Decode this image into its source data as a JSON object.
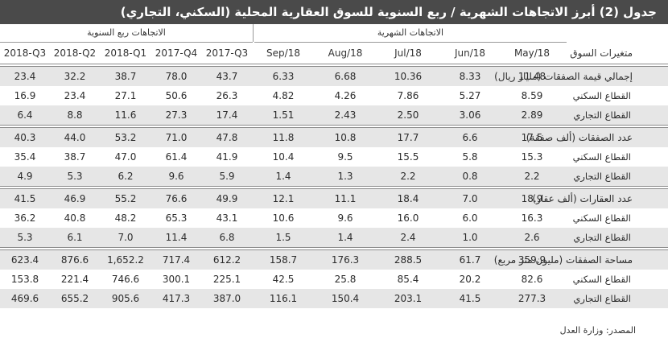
{
  "title": "جدول (2) أبرز الاتجاهات الشهرية / ربع السنوية للسوق العقارية المحلية (السكني، التجاري)",
  "sections": {
    "quarterly": "الاتجاهات ربع السنوية",
    "monthly": "الاتجاهات الشهرية"
  },
  "columns": [
    "2018-Q3",
    "2018-Q2",
    "2018-Q1",
    "2017-Q4",
    "2017-Q3",
    "Sep/18",
    "Aug/18",
    "Jul/18",
    "Jun/18",
    "May/18"
  ],
  "row_header_label": "متغيرات السوق",
  "groups": [
    {
      "rows": [
        {
          "label": "إجمالي قيمة الصفقات (مليار ريال)",
          "values": [
            "23.4",
            "32.2",
            "38.7",
            "78.0",
            "43.7",
            "6.33",
            "6.68",
            "10.36",
            "8.33",
            "11.48"
          ]
        },
        {
          "label": "القطاع السكني",
          "values": [
            "16.9",
            "23.4",
            "27.1",
            "50.6",
            "26.3",
            "4.82",
            "4.26",
            "7.86",
            "5.27",
            "8.59"
          ]
        },
        {
          "label": "القطاع التجاري",
          "values": [
            "6.4",
            "8.8",
            "11.6",
            "27.3",
            "17.4",
            "1.51",
            "2.43",
            "2.50",
            "3.06",
            "2.89"
          ]
        }
      ]
    },
    {
      "rows": [
        {
          "label": "عدد الصفقات (ألف صفقة)",
          "values": [
            "40.3",
            "44.0",
            "53.2",
            "71.0",
            "47.8",
            "11.8",
            "10.8",
            "17.7",
            "6.6",
            "17.5"
          ]
        },
        {
          "label": "القطاع السكني",
          "values": [
            "35.4",
            "38.7",
            "47.0",
            "61.4",
            "41.9",
            "10.4",
            "9.5",
            "15.5",
            "5.8",
            "15.3"
          ]
        },
        {
          "label": "القطاع التجاري",
          "values": [
            "4.9",
            "5.3",
            "6.2",
            "9.6",
            "5.9",
            "1.4",
            "1.3",
            "2.2",
            "0.8",
            "2.2"
          ]
        }
      ]
    },
    {
      "rows": [
        {
          "label": "عدد العقارات (ألف عقار)",
          "values": [
            "41.5",
            "46.9",
            "55.2",
            "76.6",
            "49.9",
            "12.1",
            "11.1",
            "18.4",
            "7.0",
            "18.9"
          ]
        },
        {
          "label": "القطاع السكني",
          "values": [
            "36.2",
            "40.8",
            "48.2",
            "65.3",
            "43.1",
            "10.6",
            "9.6",
            "16.0",
            "6.0",
            "16.3"
          ]
        },
        {
          "label": "القطاع التجاري",
          "values": [
            "5.3",
            "6.1",
            "7.0",
            "11.4",
            "6.8",
            "1.5",
            "1.4",
            "2.4",
            "1.0",
            "2.6"
          ]
        }
      ]
    },
    {
      "rows": [
        {
          "label": "مساحة الصفقات (مليون متر مربع)",
          "values": [
            "623.4",
            "876.6",
            "1,652.2",
            "717.4",
            "612.2",
            "158.7",
            "176.3",
            "288.5",
            "61.7",
            "359.9"
          ]
        },
        {
          "label": "القطاع السكني",
          "values": [
            "153.8",
            "221.4",
            "746.6",
            "300.1",
            "225.1",
            "42.5",
            "25.8",
            "85.4",
            "20.2",
            "82.6"
          ]
        },
        {
          "label": "القطاع التجاري",
          "values": [
            "469.6",
            "655.2",
            "905.6",
            "417.3",
            "387.0",
            "116.1",
            "150.4",
            "203.1",
            "41.5",
            "277.3"
          ]
        }
      ]
    }
  ],
  "source": "المصدر: وزارة العدل",
  "colors": {
    "title_bg": "#4a4a4a",
    "shade": "#e6e6e6",
    "rule": "#8a8a8a"
  }
}
